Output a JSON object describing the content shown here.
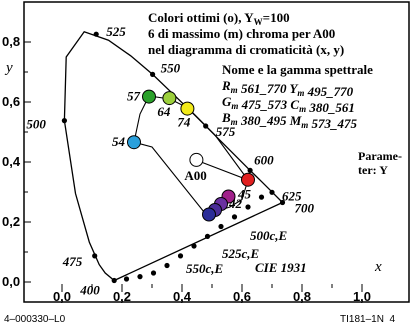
{
  "chart_data": {
    "type": "scatter",
    "title_lines": [
      "Colori ottimi (o), Y",
      "W",
      "=100",
      "6 di massimo (m) chroma per A00",
      "nel diagramma di cromaticità (x, y)"
    ],
    "legend_title": "Nome e la gamma spettrale",
    "legend_rows": [
      [
        "R",
        "m",
        " 561_770",
        "Y",
        "m",
        " 495_770"
      ],
      [
        "G",
        "m",
        " 475_573",
        "C",
        "m",
        " 380_561"
      ],
      [
        "B",
        "m",
        " 380_495",
        "M",
        "m",
        " 573_475"
      ]
    ],
    "param_lines": [
      "Parame-",
      "ter: Y"
    ],
    "xlabel": "x",
    "ylabel": "y",
    "xlim": [
      0,
      1.0
    ],
    "ylim": [
      0,
      0.85
    ],
    "x_ticks": [
      0.0,
      0.2,
      0.4,
      0.6,
      0.8,
      1.0
    ],
    "x_tick_labels": [
      "0,0",
      "0,2",
      "0,4",
      "0,6",
      "0,8",
      "1,0"
    ],
    "y_ticks": [
      0.0,
      0.2,
      0.4,
      0.6,
      0.8
    ],
    "y_tick_labels": [
      "0,0",
      "0,2",
      "0,4",
      "0,6",
      "0,8"
    ],
    "cie_label": "CIE 1931",
    "spectral_locus": [
      [
        0.174,
        0.005
      ],
      [
        0.144,
        0.03
      ],
      [
        0.124,
        0.058
      ],
      [
        0.091,
        0.133
      ],
      [
        0.045,
        0.295
      ],
      [
        0.008,
        0.538
      ],
      [
        0.014,
        0.75
      ],
      [
        0.074,
        0.834
      ],
      [
        0.155,
        0.806
      ],
      [
        0.229,
        0.754
      ],
      [
        0.302,
        0.692
      ],
      [
        0.373,
        0.624
      ],
      [
        0.444,
        0.555
      ],
      [
        0.512,
        0.487
      ],
      [
        0.575,
        0.424
      ],
      [
        0.627,
        0.372
      ],
      [
        0.666,
        0.334
      ],
      [
        0.692,
        0.308
      ],
      [
        0.735,
        0.265
      ]
    ],
    "spectral_labels": [
      {
        "label": "525",
        "x": 0.114,
        "y": 0.826
      },
      {
        "label": "550",
        "x": 0.302,
        "y": 0.692
      },
      {
        "label": "575",
        "x": 0.479,
        "y": 0.52
      },
      {
        "label": "500",
        "x": 0.008,
        "y": 0.538
      },
      {
        "label": "600",
        "x": 0.627,
        "y": 0.372
      },
      {
        "label": "625",
        "x": 0.7,
        "y": 0.299
      },
      {
        "label": "700",
        "x": 0.735,
        "y": 0.265
      },
      {
        "label": "475",
        "x": 0.109,
        "y": 0.087
      },
      {
        "label": "400",
        "x": 0.174,
        "y": 0.005
      }
    ],
    "purple_line_labels": [
      "500c,E",
      "525c,E",
      "550c,E"
    ],
    "purple_line_ticks": [
      [
        0.665,
        0.283
      ],
      [
        0.62,
        0.25
      ],
      [
        0.575,
        0.217
      ],
      [
        0.53,
        0.185
      ],
      [
        0.485,
        0.152
      ],
      [
        0.44,
        0.12
      ],
      [
        0.395,
        0.087
      ],
      [
        0.35,
        0.055
      ],
      [
        0.305,
        0.03
      ],
      [
        0.26,
        0.018
      ],
      [
        0.215,
        0.01
      ]
    ],
    "optimal_colour_curve": [
      [
        0.445,
        0.407
      ],
      [
        0.62,
        0.34
      ],
      [
        0.6,
        0.275
      ],
      [
        0.56,
        0.25
      ],
      [
        0.52,
        0.238
      ],
      [
        0.48,
        0.225
      ],
      [
        0.3,
        0.45
      ],
      [
        0.24,
        0.466
      ],
      [
        0.26,
        0.56
      ],
      [
        0.29,
        0.62
      ],
      [
        0.36,
        0.61
      ],
      [
        0.42,
        0.58
      ],
      [
        0.51,
        0.49
      ],
      [
        0.62,
        0.34
      ]
    ],
    "points": [
      {
        "label": "57",
        "x": 0.29,
        "y": 0.618,
        "color": "#2aa02a"
      },
      {
        "label": "64",
        "x": 0.358,
        "y": 0.613,
        "color": "#9ccf3c"
      },
      {
        "label": "74",
        "x": 0.418,
        "y": 0.578,
        "color": "#f2ea1a"
      },
      {
        "label": "54",
        "x": 0.24,
        "y": 0.466,
        "color": "#2aa0dc"
      },
      {
        "label": "A00",
        "x": 0.448,
        "y": 0.407,
        "color": "#ffffff"
      },
      {
        "label": "45",
        "x": 0.62,
        "y": 0.341,
        "color": "#e02020"
      },
      {
        "label": "",
        "x": 0.555,
        "y": 0.285,
        "color": "#a0208a"
      },
      {
        "label": "42",
        "x": 0.53,
        "y": 0.26,
        "color": "#6a30a0"
      },
      {
        "label": "",
        "x": 0.51,
        "y": 0.24,
        "color": "#4a2c98"
      },
      {
        "label": "",
        "x": 0.49,
        "y": 0.225,
        "color": "#2a2c98"
      }
    ],
    "grid": false
  },
  "footer": {
    "left": "4–000330–L0",
    "right": "TI181–1N_4"
  }
}
